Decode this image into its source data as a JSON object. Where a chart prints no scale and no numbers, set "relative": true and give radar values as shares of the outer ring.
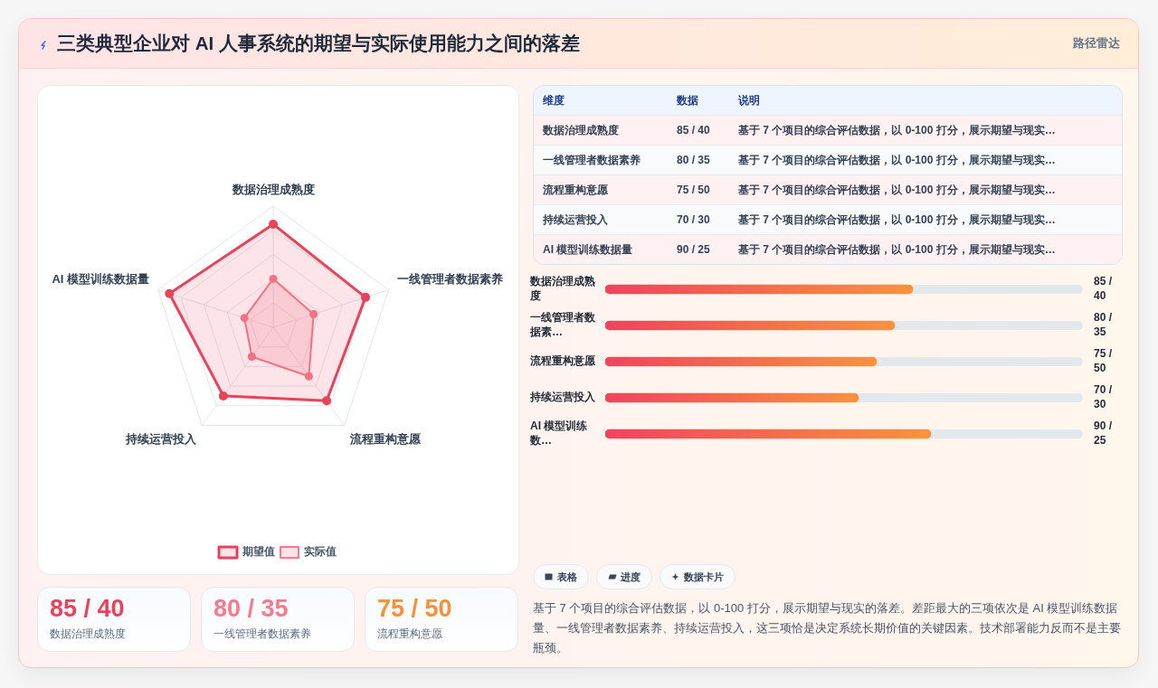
{
  "chart_data": [
    {
      "type": "other",
      "title": "三类典型企业对 AI 人事系统的期望与实际使用能力之间的落差",
      "subtitle": "路径雷达"
    },
    {
      "type": "radar",
      "categories": [
        "数据治理成熟度",
        "一线管理者数据素养",
        "流程重构意愿",
        "持续运营投入",
        "AI 模型训练数据量"
      ],
      "series": [
        {
          "name": "期望值",
          "color": "#e8435a",
          "values": [
            0.85,
            0.8,
            0.75,
            0.7,
            0.9
          ]
        },
        {
          "name": "实际值",
          "color": "#f47a8c",
          "values": [
            0.4,
            0.35,
            0.5,
            0.3,
            0.25
          ]
        }
      ],
      "relative": true,
      "grid": true,
      "legend": "bottom",
      "marker": "circle"
    },
    {
      "type": "other",
      "categories": [
        "维度",
        "数据",
        "说明"
      ],
      "cell_labels": [
        [
          "数据治理成熟度",
          "85 / 40",
          "基于 7 个项目的综合评估数据，以 0-100 打分，展示期望与现实…"
        ],
        [
          "一线管理者数据素养",
          "80 / 35",
          "基于 7 个项目的综合评估数据，以 0-100 打分，展示期望与现实…"
        ],
        [
          "流程重构意愿",
          "75 / 50",
          "基于 7 个项目的综合评估数据，以 0-100 打分，展示期望与现实…"
        ],
        [
          "持续运营投入",
          "70 / 30",
          "基于 7 个项目的综合评估数据，以 0-100 打分，展示期望与现实…"
        ],
        [
          "AI 模型训练数据量",
          "90 / 25",
          "基于 7 个项目的综合评估数据，以 0-100 打分，展示期望与现实…"
        ]
      ]
    },
    {
      "type": "bar",
      "orientation": "horizontal",
      "categories": [
        "数据治理成熟度",
        "一线管理者数据素…",
        "流程重构意愿",
        "持续运营投入",
        "AI 模型训练数…"
      ],
      "values": [
        85,
        80,
        75,
        70,
        90
      ],
      "color": "#f0435f",
      "value_labels": [
        "85 / 40",
        "80 / 35",
        "75 / 50",
        "70 / 30",
        "90 / 25"
      ],
      "xlim": [
        0,
        132
      ],
      "tick_labels": "y"
    },
    {
      "type": "other",
      "annotations": [
        "85 / 40",
        "数据治理成熟度",
        "80 / 35",
        "一线管理者数据素养",
        "75 / 50",
        "流程重构意愿"
      ],
      "colors": [
        "#e8435a",
        "#f47a8c",
        "#f59137"
      ]
    },
    {
      "type": "other",
      "annotations": [
        "表格",
        "进度",
        "数据卡片",
        "基于 7 个项目的综合评估数据，以 0-100 打分，展示期望与现实的落差。差距最大的三项依次是 AI 模型训练数据量、一线管理者数据素养、持续运营投入，这三项恰是决定系统长期价值的关键因素。技术部署能力反而不是主要瓶颈。"
      ]
    }
  ]
}
